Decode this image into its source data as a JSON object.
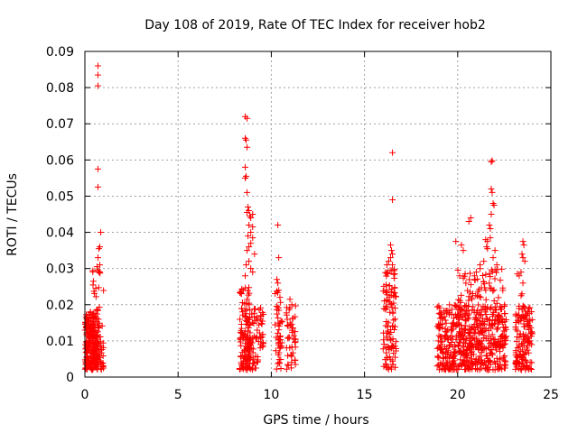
{
  "chart_data": {
    "type": "scatter",
    "title": "Day 108 of 2019, Rate Of TEC Index for receiver hob2",
    "xlabel": "GPS time / hours",
    "ylabel": "ROTI / TECUs",
    "xlim": [
      0,
      25
    ],
    "ylim": [
      0,
      0.09
    ],
    "xticks": [
      0,
      5,
      10,
      15,
      20,
      25
    ],
    "yticks": [
      0,
      0.01,
      0.02,
      0.03,
      0.04,
      0.05,
      0.06,
      0.07,
      0.08,
      0.09
    ],
    "xtick_labels": [
      "0",
      "5",
      "10",
      "15",
      "20",
      "25"
    ],
    "ytick_labels": [
      "0",
      "0.01",
      "0.02",
      "0.03",
      "0.04",
      "0.05",
      "0.06",
      "0.07",
      "0.08",
      "0.09"
    ],
    "grid": true,
    "marker": "+",
    "color": "#ff0000",
    "clusters": [
      {
        "x": [
          0.0,
          0.7
        ],
        "y": [
          0.002,
          0.018
        ],
        "n": 220
      },
      {
        "x": [
          0.4,
          1.0
        ],
        "y": [
          0.002,
          0.03
        ],
        "n": 80
      },
      {
        "x": [
          8.3,
          8.9
        ],
        "y": [
          0.002,
          0.025
        ],
        "n": 110
      },
      {
        "x": [
          8.6,
          9.3
        ],
        "y": [
          0.002,
          0.02
        ],
        "n": 60
      },
      {
        "x": [
          9.3,
          9.6
        ],
        "y": [
          0.008,
          0.02
        ],
        "n": 25
      },
      {
        "x": [
          10.2,
          10.6
        ],
        "y": [
          0.002,
          0.025
        ],
        "n": 45
      },
      {
        "x": [
          10.8,
          11.3
        ],
        "y": [
          0.002,
          0.02
        ],
        "n": 45
      },
      {
        "x": [
          16.0,
          16.7
        ],
        "y": [
          0.002,
          0.03
        ],
        "n": 110
      },
      {
        "x": [
          18.9,
          22.6
        ],
        "y": [
          0.002,
          0.02
        ],
        "n": 480
      },
      {
        "x": [
          20.0,
          22.5
        ],
        "y": [
          0.008,
          0.03
        ],
        "n": 130
      },
      {
        "x": [
          23.1,
          24.0
        ],
        "y": [
          0.002,
          0.02
        ],
        "n": 140
      }
    ],
    "points": [
      [
        0.7,
        0.086
      ],
      [
        0.7,
        0.0835
      ],
      [
        0.7,
        0.0805
      ],
      [
        0.7,
        0.0575
      ],
      [
        0.7,
        0.0525
      ],
      [
        0.85,
        0.04
      ],
      [
        0.8,
        0.036
      ],
      [
        0.75,
        0.0355
      ],
      [
        0.7,
        0.033
      ],
      [
        0.8,
        0.031
      ],
      [
        0.65,
        0.0305
      ],
      [
        0.75,
        0.029
      ],
      [
        8.6,
        0.072
      ],
      [
        8.7,
        0.0715
      ],
      [
        8.6,
        0.066
      ],
      [
        8.65,
        0.0655
      ],
      [
        8.7,
        0.0635
      ],
      [
        8.6,
        0.058
      ],
      [
        8.65,
        0.0555
      ],
      [
        8.6,
        0.055
      ],
      [
        8.7,
        0.051
      ],
      [
        8.75,
        0.047
      ],
      [
        8.8,
        0.046
      ],
      [
        8.7,
        0.0455
      ],
      [
        9.0,
        0.045
      ],
      [
        8.85,
        0.0445
      ],
      [
        8.9,
        0.044
      ],
      [
        8.8,
        0.042
      ],
      [
        9.0,
        0.0415
      ],
      [
        8.9,
        0.04
      ],
      [
        8.75,
        0.039
      ],
      [
        9.0,
        0.0385
      ],
      [
        8.9,
        0.037
      ],
      [
        8.8,
        0.036
      ],
      [
        8.7,
        0.035
      ],
      [
        9.1,
        0.034
      ],
      [
        8.8,
        0.032
      ],
      [
        8.65,
        0.031
      ],
      [
        8.9,
        0.03
      ],
      [
        8.6,
        0.028
      ],
      [
        9.0,
        0.029
      ],
      [
        10.35,
        0.042
      ],
      [
        10.4,
        0.033
      ],
      [
        10.3,
        0.027
      ],
      [
        10.35,
        0.026
      ],
      [
        10.4,
        0.024
      ],
      [
        11.0,
        0.0215
      ],
      [
        11.1,
        0.02
      ],
      [
        16.5,
        0.062
      ],
      [
        16.5,
        0.049
      ],
      [
        16.4,
        0.0365
      ],
      [
        16.45,
        0.035
      ],
      [
        16.5,
        0.034
      ],
      [
        16.4,
        0.033
      ],
      [
        16.3,
        0.032
      ],
      [
        16.5,
        0.031
      ],
      [
        16.2,
        0.031
      ],
      [
        20.7,
        0.044
      ],
      [
        20.6,
        0.043
      ],
      [
        19.9,
        0.0375
      ],
      [
        20.2,
        0.0365
      ],
      [
        20.3,
        0.035
      ],
      [
        21.5,
        0.038
      ],
      [
        21.6,
        0.0375
      ],
      [
        21.75,
        0.0385
      ],
      [
        21.55,
        0.036
      ],
      [
        21.6,
        0.0355
      ],
      [
        21.4,
        0.032
      ],
      [
        21.2,
        0.031
      ],
      [
        21.0,
        0.029
      ],
      [
        20.4,
        0.0285
      ],
      [
        20.9,
        0.028
      ],
      [
        21.8,
        0.0595
      ],
      [
        21.85,
        0.0598
      ],
      [
        21.8,
        0.052
      ],
      [
        21.85,
        0.051
      ],
      [
        21.9,
        0.048
      ],
      [
        21.95,
        0.0475
      ],
      [
        21.8,
        0.045
      ],
      [
        21.7,
        0.042
      ],
      [
        21.75,
        0.041
      ],
      [
        22.0,
        0.035
      ],
      [
        21.9,
        0.033
      ],
      [
        22.1,
        0.031
      ],
      [
        23.5,
        0.0375
      ],
      [
        23.55,
        0.0365
      ],
      [
        23.45,
        0.034
      ],
      [
        23.5,
        0.033
      ],
      [
        23.6,
        0.032
      ],
      [
        23.4,
        0.029
      ],
      [
        23.2,
        0.0285
      ],
      [
        23.3,
        0.028
      ],
      [
        23.5,
        0.026
      ],
      [
        23.45,
        0.023
      ],
      [
        23.4,
        0.0225
      ]
    ]
  }
}
